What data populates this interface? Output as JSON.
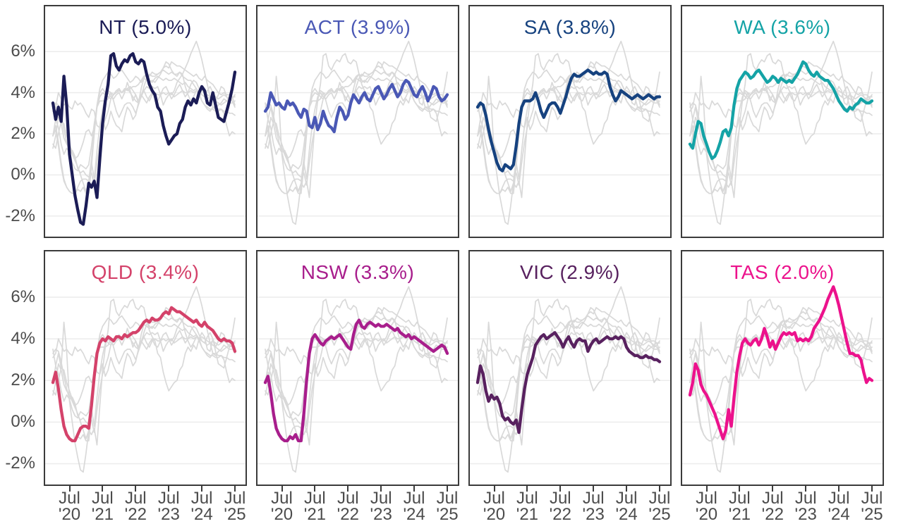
{
  "styles": {
    "background_line_color": "#d9d9d9",
    "gridline_color": "#ececec",
    "border_color": "#3b3b3b",
    "axis_text_color": "#4c4c4c"
  },
  "figure": {
    "y_axis": {
      "ticks": [
        {
          "label": "6%",
          "value": 6
        },
        {
          "label": "4%",
          "value": 4
        },
        {
          "label": "2%",
          "value": 2
        },
        {
          "label": "0%",
          "value": 0
        },
        {
          "label": "-2%",
          "value": -2
        }
      ]
    },
    "x_axis": {
      "ticks": [
        {
          "month": "Jul",
          "year": "'20",
          "index": 6
        },
        {
          "month": "Jul",
          "year": "'21",
          "index": 18
        },
        {
          "month": "Jul",
          "year": "'22",
          "index": 30
        },
        {
          "month": "Jul",
          "year": "'23",
          "index": 42
        },
        {
          "month": "Jul",
          "year": "'24",
          "index": 54
        },
        {
          "month": "Jul",
          "year": "'25",
          "index": 66
        }
      ]
    }
  },
  "chart_data": {
    "type": "line",
    "layout": "small-multiples 2x4, one highlighted series per panel, all other series shown in light gray",
    "x_frequency": "monthly",
    "x_start": "Jan 2020",
    "x_end": "Jul 2025",
    "ylim": [
      -3.0,
      8.2
    ],
    "grid_values": [
      6,
      4,
      2,
      0,
      -2
    ],
    "panels": [
      {
        "region": "NT",
        "title": "NT (5.0%)",
        "latest": "5.0%",
        "color": "#1b1c56"
      },
      {
        "region": "ACT",
        "title": "ACT (3.9%)",
        "latest": "3.9%",
        "color": "#4a58b5"
      },
      {
        "region": "SA",
        "title": "SA (3.8%)",
        "latest": "3.8%",
        "color": "#16427f"
      },
      {
        "region": "WA",
        "title": "WA (3.6%)",
        "latest": "3.6%",
        "color": "#14a3a6"
      },
      {
        "region": "QLD",
        "title": "QLD (3.4%)",
        "latest": "3.4%",
        "color": "#d4426a"
      },
      {
        "region": "NSW",
        "title": "NSW (3.3%)",
        "latest": "3.3%",
        "color": "#a81e8c"
      },
      {
        "region": "VIC",
        "title": "VIC (2.9%)",
        "latest": "2.9%",
        "color": "#58215f"
      },
      {
        "region": "TAS",
        "title": "TAS (2.0%)",
        "latest": "2.0%",
        "color": "#ec128c"
      }
    ],
    "series": [
      {
        "name": "NT",
        "color": "#1b1c56",
        "values": [
          3.5,
          2.7,
          3.3,
          2.6,
          4.8,
          3.4,
          1.0,
          0.0,
          -1.0,
          -1.7,
          -2.3,
          -2.4,
          -1.5,
          -0.4,
          -0.6,
          -0.3,
          -1.1,
          0.8,
          2.5,
          3.6,
          4.4,
          5.8,
          5.9,
          5.3,
          5.1,
          5.4,
          5.6,
          5.5,
          5.8,
          5.9,
          5.5,
          5.4,
          5.6,
          5.5,
          4.9,
          4.4,
          4.1,
          3.9,
          3.3,
          3.1,
          2.4,
          1.9,
          1.5,
          1.7,
          1.9,
          2.0,
          2.5,
          2.7,
          3.3,
          3.6,
          3.4,
          3.7,
          3.5,
          4.0,
          4.3,
          4.1,
          3.5,
          3.4,
          4.0,
          3.4,
          2.8,
          2.7,
          2.6,
          3.1,
          3.6,
          4.2,
          5.0
        ]
      },
      {
        "name": "ACT",
        "color": "#4a58b5",
        "values": [
          3.1,
          3.3,
          4.0,
          3.7,
          3.4,
          3.5,
          3.3,
          3.2,
          3.6,
          3.4,
          3.5,
          3.3,
          3.0,
          2.8,
          3.2,
          3.1,
          2.4,
          2.3,
          2.8,
          2.2,
          2.5,
          3.1,
          2.7,
          2.4,
          2.3,
          2.1,
          2.8,
          3.3,
          3.1,
          2.7,
          2.9,
          3.5,
          3.9,
          3.7,
          3.5,
          3.8,
          4.0,
          3.7,
          3.6,
          3.9,
          4.2,
          4.3,
          4.0,
          3.7,
          3.9,
          4.2,
          4.4,
          4.1,
          3.8,
          4.0,
          4.4,
          4.6,
          4.5,
          4.2,
          3.9,
          3.8,
          4.1,
          4.3,
          4.0,
          3.6,
          3.9,
          4.3,
          4.2,
          3.8,
          3.6,
          3.7,
          3.9
        ]
      },
      {
        "name": "SA",
        "color": "#16427f",
        "values": [
          3.3,
          3.5,
          3.4,
          2.9,
          2.2,
          1.6,
          1.1,
          0.6,
          0.3,
          0.2,
          0.5,
          0.4,
          0.3,
          0.5,
          1.4,
          2.5,
          3.3,
          3.6,
          3.6,
          3.6,
          3.7,
          4.0,
          3.6,
          3.1,
          2.8,
          3.1,
          3.4,
          3.5,
          3.5,
          3.3,
          3.0,
          3.4,
          3.8,
          4.3,
          4.7,
          4.9,
          4.8,
          4.8,
          4.9,
          5.0,
          5.1,
          5.0,
          4.9,
          5.0,
          4.9,
          4.9,
          5.0,
          4.9,
          4.3,
          3.9,
          3.6,
          3.8,
          4.1,
          4.0,
          3.9,
          3.8,
          3.7,
          3.8,
          3.9,
          3.8,
          3.7,
          3.8,
          3.9,
          3.8,
          3.7,
          3.8,
          3.8
        ]
      },
      {
        "name": "WA",
        "color": "#14a3a6",
        "values": [
          1.5,
          1.3,
          2.0,
          2.6,
          2.5,
          1.9,
          1.5,
          1.1,
          0.8,
          0.9,
          1.2,
          1.6,
          2.1,
          2.2,
          1.9,
          2.3,
          3.4,
          4.2,
          4.6,
          4.8,
          5.0,
          4.9,
          4.7,
          4.8,
          5.0,
          5.1,
          4.9,
          4.7,
          4.5,
          4.6,
          4.8,
          4.7,
          4.5,
          4.7,
          4.6,
          4.5,
          4.6,
          4.5,
          4.7,
          4.9,
          5.2,
          5.5,
          5.4,
          5.1,
          4.9,
          4.8,
          5.0,
          4.8,
          4.7,
          4.6,
          4.6,
          4.4,
          4.2,
          3.9,
          3.6,
          3.4,
          3.2,
          3.1,
          3.3,
          3.2,
          3.4,
          3.5,
          3.7,
          3.6,
          3.5,
          3.5,
          3.6
        ]
      },
      {
        "name": "QLD",
        "color": "#d4426a",
        "values": [
          1.9,
          2.4,
          1.6,
          0.6,
          -0.2,
          -0.6,
          -0.8,
          -0.9,
          -0.9,
          -0.6,
          -0.3,
          -0.2,
          -0.2,
          -0.3,
          0.8,
          2.2,
          3.3,
          3.8,
          4.0,
          3.9,
          4.1,
          4.0,
          3.9,
          4.1,
          4.1,
          4.0,
          4.2,
          4.1,
          4.2,
          4.3,
          4.3,
          4.4,
          4.6,
          4.8,
          4.9,
          4.8,
          5.0,
          4.9,
          4.9,
          5.0,
          5.2,
          5.3,
          5.2,
          5.5,
          5.4,
          5.3,
          5.3,
          5.2,
          5.1,
          5.0,
          4.9,
          4.8,
          4.9,
          4.7,
          4.6,
          4.8,
          4.6,
          4.5,
          4.4,
          4.2,
          4.0,
          3.9,
          4.0,
          3.9,
          3.9,
          3.8,
          3.4
        ]
      },
      {
        "name": "NSW",
        "color": "#a81e8c",
        "values": [
          1.9,
          2.2,
          1.4,
          0.4,
          -0.3,
          -0.6,
          -0.8,
          -0.9,
          -0.9,
          -0.7,
          -0.8,
          -0.6,
          -0.9,
          -0.9,
          0.4,
          2.0,
          3.3,
          4.0,
          4.2,
          4.0,
          3.8,
          3.7,
          3.9,
          4.0,
          4.1,
          4.0,
          4.1,
          4.2,
          4.0,
          3.8,
          3.6,
          3.5,
          4.2,
          4.7,
          4.9,
          4.6,
          4.5,
          4.7,
          4.8,
          4.7,
          4.6,
          4.7,
          4.6,
          4.6,
          4.7,
          4.6,
          4.5,
          4.4,
          4.5,
          4.3,
          4.2,
          4.1,
          4.2,
          4.0,
          4.1,
          4.0,
          3.9,
          3.8,
          3.7,
          3.6,
          3.5,
          3.4,
          3.5,
          3.6,
          3.7,
          3.6,
          3.3
        ]
      },
      {
        "name": "VIC",
        "color": "#58215f",
        "values": [
          1.9,
          2.7,
          2.3,
          1.5,
          1.0,
          1.3,
          1.1,
          1.2,
          0.9,
          0.3,
          0.1,
          0.2,
          0.0,
          -0.1,
          0.1,
          -0.5,
          0.6,
          1.6,
          2.3,
          2.7,
          3.1,
          3.7,
          3.9,
          4.1,
          4.2,
          4.0,
          4.1,
          4.2,
          4.3,
          4.1,
          3.9,
          3.6,
          3.9,
          4.1,
          3.8,
          3.6,
          3.9,
          4.0,
          3.9,
          3.9,
          3.4,
          3.7,
          3.9,
          4.0,
          3.8,
          3.9,
          4.0,
          4.1,
          4.0,
          4.0,
          4.1,
          4.0,
          4.1,
          4.0,
          3.6,
          3.4,
          3.3,
          3.2,
          3.2,
          3.1,
          3.1,
          3.2,
          3.1,
          3.1,
          3.0,
          3.0,
          2.9
        ]
      },
      {
        "name": "TAS",
        "color": "#ec128c",
        "values": [
          1.3,
          1.9,
          2.8,
          2.5,
          1.8,
          1.5,
          1.3,
          1.0,
          0.7,
          0.4,
          0.0,
          -0.4,
          -0.8,
          -0.4,
          0.6,
          -0.2,
          1.2,
          2.4,
          3.2,
          3.8,
          4.0,
          3.8,
          3.7,
          3.9,
          4.0,
          3.7,
          4.0,
          4.5,
          4.1,
          3.6,
          3.9,
          3.5,
          3.8,
          4.1,
          4.3,
          4.2,
          4.3,
          4.2,
          4.3,
          3.9,
          4.0,
          3.9,
          4.0,
          3.9,
          4.1,
          4.5,
          4.7,
          4.9,
          5.2,
          5.5,
          5.9,
          6.2,
          6.5,
          6.1,
          5.6,
          5.0,
          4.4,
          3.8,
          3.3,
          3.3,
          3.2,
          3.2,
          3.0,
          2.4,
          1.9,
          2.1,
          2.0
        ]
      }
    ]
  }
}
